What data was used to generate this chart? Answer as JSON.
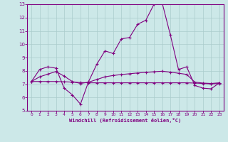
{
  "xlabel": "Windchill (Refroidissement éolien,°C)",
  "bg_color": "#cce8e8",
  "line_color": "#800080",
  "grid_color": "#aacccc",
  "xlim": [
    -0.5,
    23.5
  ],
  "ylim": [
    5,
    13
  ],
  "xticks": [
    0,
    1,
    2,
    3,
    4,
    5,
    6,
    7,
    8,
    9,
    10,
    11,
    12,
    13,
    14,
    15,
    16,
    17,
    18,
    19,
    20,
    21,
    22,
    23
  ],
  "yticks": [
    5,
    6,
    7,
    8,
    9,
    10,
    11,
    12,
    13
  ],
  "line1_x": [
    0,
    1,
    2,
    3,
    4,
    5,
    6,
    7,
    8,
    9,
    10,
    11,
    12,
    13,
    14,
    15,
    16,
    17,
    18,
    19,
    20,
    21,
    22,
    23
  ],
  "line1_y": [
    7.2,
    8.1,
    8.3,
    8.2,
    6.7,
    6.2,
    5.5,
    7.2,
    8.5,
    9.5,
    9.3,
    10.4,
    10.5,
    11.5,
    11.8,
    13.0,
    13.1,
    10.7,
    8.1,
    8.3,
    6.9,
    6.7,
    6.65,
    7.1
  ],
  "line2_x": [
    0,
    1,
    2,
    3,
    4,
    5,
    6,
    7,
    8,
    9,
    10,
    11,
    12,
    13,
    14,
    15,
    16,
    17,
    18,
    19,
    20,
    21,
    22,
    23
  ],
  "line2_y": [
    7.2,
    7.55,
    7.75,
    7.95,
    7.6,
    7.2,
    7.05,
    7.15,
    7.35,
    7.55,
    7.65,
    7.72,
    7.78,
    7.84,
    7.88,
    7.93,
    7.97,
    7.9,
    7.82,
    7.73,
    7.15,
    7.08,
    7.05,
    7.1
  ],
  "line3_x": [
    0,
    1,
    2,
    3,
    4,
    5,
    6,
    7,
    8,
    9,
    10,
    11,
    12,
    13,
    14,
    15,
    16,
    17,
    18,
    19,
    20,
    21,
    22,
    23
  ],
  "line3_y": [
    7.2,
    7.2,
    7.2,
    7.2,
    7.18,
    7.15,
    7.12,
    7.1,
    7.1,
    7.1,
    7.1,
    7.1,
    7.1,
    7.1,
    7.1,
    7.1,
    7.1,
    7.1,
    7.1,
    7.1,
    7.08,
    7.05,
    7.02,
    7.05
  ]
}
